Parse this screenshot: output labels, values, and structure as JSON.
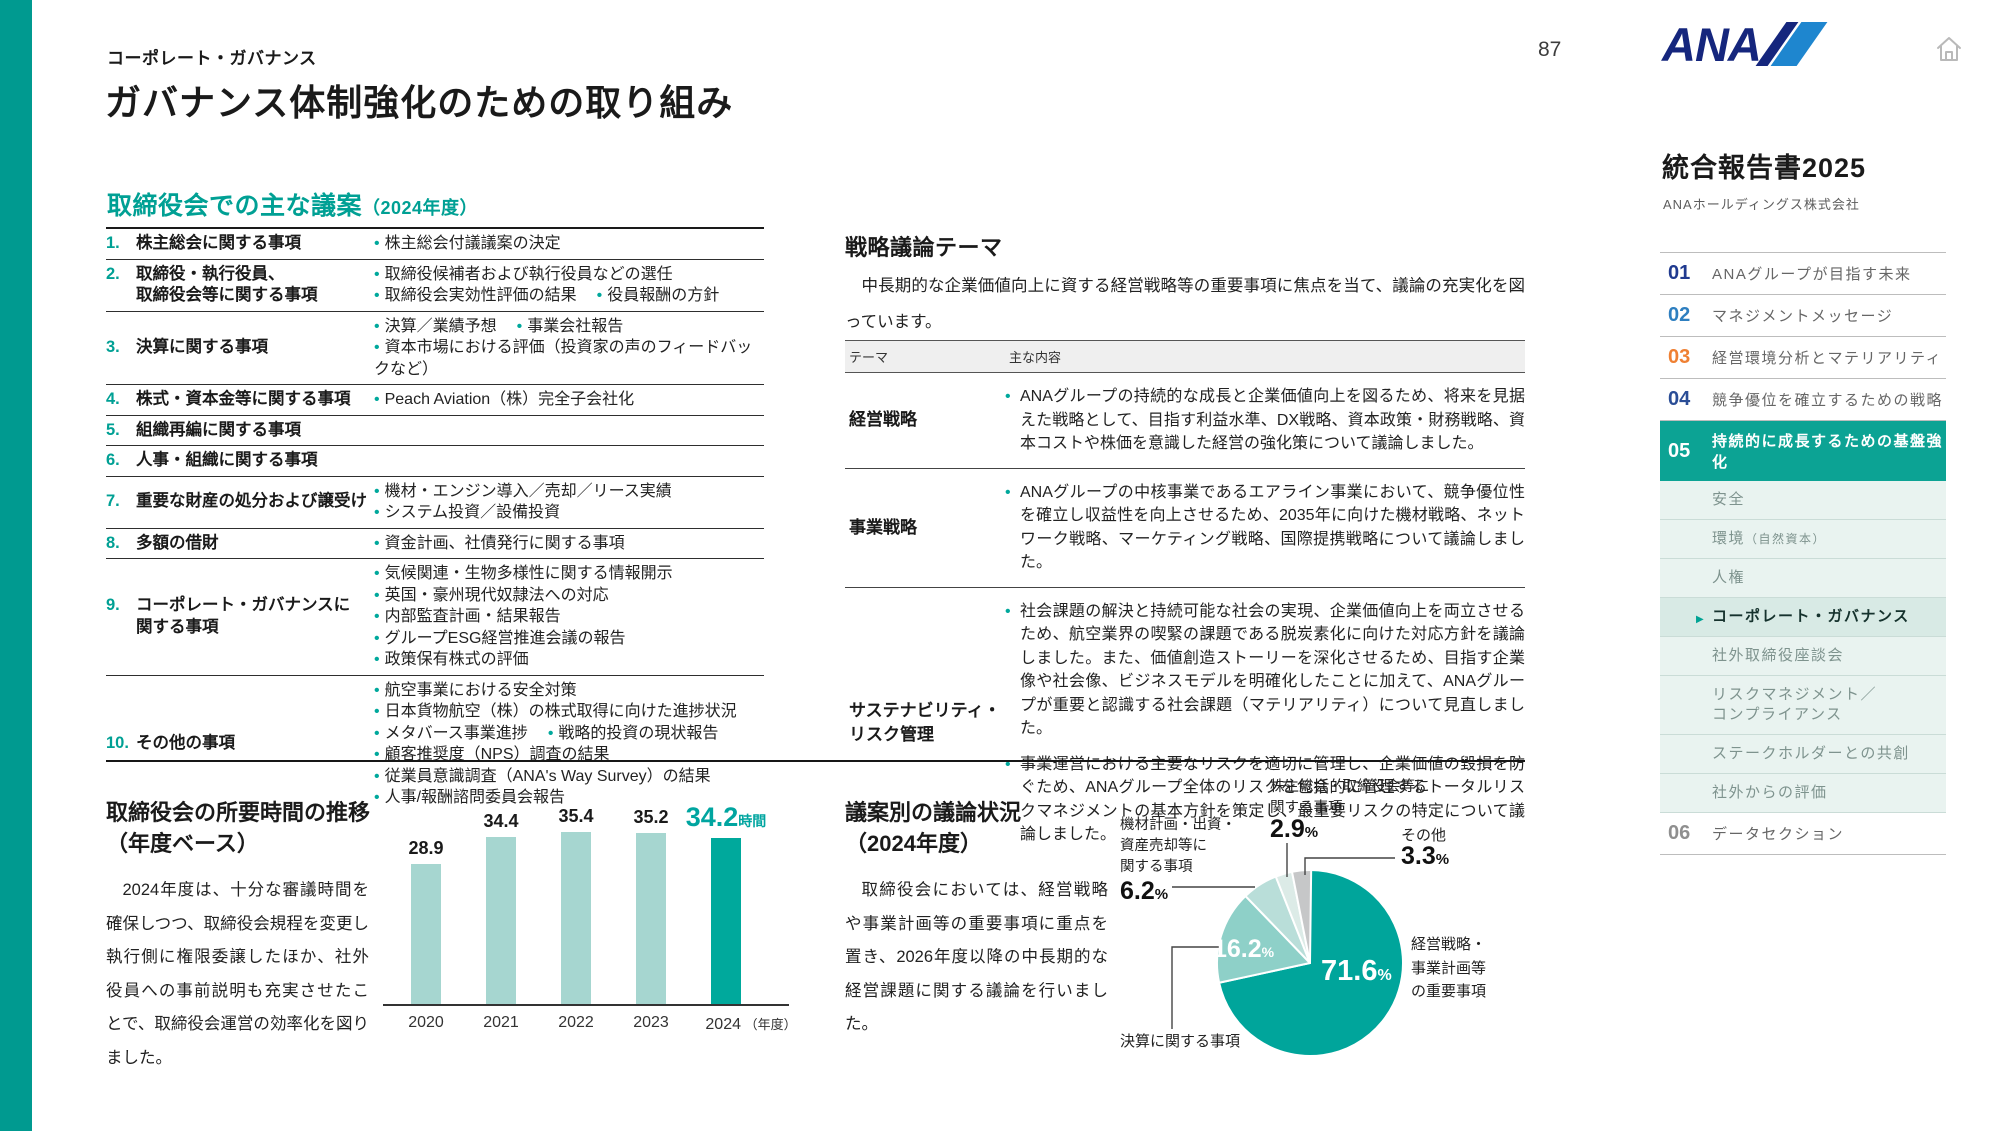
{
  "page": {
    "number": "87",
    "eyebrow": "コーポレート・ガバナンス",
    "title": "ガバナンス体制強化のための取り組み"
  },
  "agenda": {
    "heading": "取締役会での主な議案",
    "heading_note": "（2024年度）",
    "rows": [
      {
        "no": "1.",
        "item_lines": [
          "株主総会に関する事項"
        ],
        "details": [
          [
            "株主総会付議議案の決定"
          ]
        ]
      },
      {
        "no": "2.",
        "item_lines": [
          "取締役・執行役員、",
          "取締役会等に関する事項"
        ],
        "details": [
          [
            "取締役候補者および執行役員などの選任"
          ],
          [
            "取締役会実効性評価の結果",
            "役員報酬の方針"
          ]
        ]
      },
      {
        "no": "3.",
        "item_lines": [
          "決算に関する事項"
        ],
        "details": [
          [
            "決算／業績予想",
            "事業会社報告"
          ],
          [
            "資本市場における評価（投資家の声のフィードバックなど）"
          ]
        ]
      },
      {
        "no": "4.",
        "item_lines": [
          "株式・資本金等に関する事項"
        ],
        "details": [
          [
            "Peach Aviation（株）完全子会社化"
          ]
        ]
      },
      {
        "no": "5.",
        "item_lines": [
          "組織再編に関する事項"
        ],
        "details": []
      },
      {
        "no": "6.",
        "item_lines": [
          "人事・組織に関する事項"
        ],
        "details": []
      },
      {
        "no": "7.",
        "item_lines": [
          "重要な財産の処分および譲受け"
        ],
        "details": [
          [
            "機材・エンジン導入／売却／リース実績"
          ],
          [
            "システム投資／設備投資"
          ]
        ]
      },
      {
        "no": "8.",
        "item_lines": [
          "多額の借財"
        ],
        "details": [
          [
            "資金計画、社債発行に関する事項"
          ]
        ]
      },
      {
        "no": "9.",
        "item_lines": [
          "コーポレート・ガバナンスに",
          "関する事項"
        ],
        "details": [
          [
            "気候関連・生物多様性に関する情報開示"
          ],
          [
            "英国・豪州現代奴隷法への対応"
          ],
          [
            "内部監査計画・結果報告"
          ],
          [
            "グループESG経営推進会議の報告"
          ],
          [
            "政策保有株式の評価"
          ]
        ]
      },
      {
        "no": "10.",
        "item_lines": [
          "その他の事項"
        ],
        "details": [
          [
            "航空事業における安全対策"
          ],
          [
            "日本貨物航空（株）の株式取得に向けた進捗状況"
          ],
          [
            "メタバース事業進捗",
            "戦略的投資の現状報告"
          ],
          [
            "顧客推奨度（NPS）調査の結果"
          ],
          [
            "従業員意識調査（ANA's Way Survey）の結果"
          ],
          [
            "人事/報酬諮問委員会報告"
          ]
        ]
      }
    ]
  },
  "strategy": {
    "heading": "戦略議論テーマ",
    "intro": "中長期的な企業価値向上に資する経営戦略等の重要事項に焦点を当て、議論の充実化を図っています。",
    "col_theme": "テーマ",
    "col_content": "主な内容",
    "rows": [
      {
        "theme_lines": [
          "経営戦略"
        ],
        "bullets": [
          "ANAグループの持続的な成長と企業価値向上を図るため、将来を見据えた戦略として、目指す利益水準、DX戦略、資本政策・財務戦略、資本コストや株価を意識した経営の強化策について議論しました。"
        ]
      },
      {
        "theme_lines": [
          "事業戦略"
        ],
        "bullets": [
          "ANAグループの中核事業であるエアライン事業において、競争優位性を確立し収益性を向上させるため、2035年に向けた機材戦略、ネットワーク戦略、マーケティング戦略、国際提携戦略について議論しました。"
        ]
      },
      {
        "theme_lines": [
          "サステナビリティ・",
          "リスク管理"
        ],
        "bullets": [
          "社会課題の解決と持続可能な社会の実現、企業価値向上を両立させるため、航空業界の喫緊の課題である脱炭素化に向けた対応方針を議論しました。また、価値創造ストーリーを深化させるため、目指す企業像や社会像、ビジネスモデルを明確化したことに加えて、ANAグループが重要と認識する社会課題（マテリアリティ）について見直しました。",
          "事業運営における主要なリスクを適切に管理し、企業価値の毀損を防ぐため、ANAグループ全体のリスクを包括的に管理するトータルリスクマネジメントの基本方針を策定し、最重要リスクの特定について議論しました。"
        ]
      }
    ]
  },
  "hours": {
    "title_lines": [
      "取締役会の所要時間の推移",
      "（年度ベース）"
    ],
    "body": "2024年度は、十分な審議時間を確保しつつ、取締役会規程を変更し執行側に権限委譲したほか、社外役員への事前説明も充実させたことで、取締役会運営の効率化を図りました。"
  },
  "discussion": {
    "title_lines": [
      "議案別の議論状況",
      "（2024年度）"
    ],
    "body": "取締役会においては、経営戦略や事業計画等の重要事項に重点を置き、2026年度以降の中長期的な経営課題に関する議論を行いました。"
  },
  "chart_data": [
    {
      "type": "bar",
      "title": "取締役会の所要時間の推移（年度ベース）",
      "categories": [
        "2020",
        "2021",
        "2022",
        "2023",
        "2024"
      ],
      "values": [
        28.9,
        34.4,
        35.4,
        35.2,
        34.2
      ],
      "unit": "時間",
      "axis_note": "（年度）",
      "highlight_index": 4,
      "ylim": [
        0,
        40
      ],
      "bar_color": "#a6d6d0",
      "highlight_color": "#00a99c"
    },
    {
      "type": "pie",
      "title": "議案別の議論状況（2024年度）",
      "unit": "%",
      "direction": "clockwise",
      "start_angle_deg": 0,
      "slices": [
        {
          "label": "経営戦略・事業計画等の重要事項",
          "label_lines": [
            "経営戦略・",
            "事業計画等",
            "の重要事項"
          ],
          "value": 71.6,
          "color": "#00a59b"
        },
        {
          "label": "決算に関する事項",
          "value": 16.2,
          "color": "#8ed0c8"
        },
        {
          "label": "機材計画・出資・資産売却等に関する事項",
          "label_lines": [
            "機材計画・出資・",
            "資産売却等に",
            "関する事項"
          ],
          "value": 6.2,
          "color": "#b9ded9"
        },
        {
          "label": "株主総会・取締役会等に関する事項",
          "label_lines": [
            "株主総会・取締役会等に",
            "関する事項"
          ],
          "value": 2.9,
          "color": "#dcebe7"
        },
        {
          "label": "その他",
          "value": 3.3,
          "color": "#c6c7c8"
        }
      ]
    }
  ],
  "sidebar": {
    "logo_text": "ANA",
    "report_title": "統合報告書2025",
    "company": "ANAホールディングス株式会社",
    "nav": [
      {
        "num": "01",
        "label": "ANAグループが目指す未来",
        "num_color": "#203a8f"
      },
      {
        "num": "02",
        "label": "マネジメントメッセージ",
        "num_color": "#2e7fc0"
      },
      {
        "num": "03",
        "label": "経営環境分析とマテリアリティ",
        "num_color": "#ef8033"
      },
      {
        "num": "04",
        "label": "競争優位を確立するための戦略",
        "num_color": "#2a4d96"
      },
      {
        "num": "05",
        "label": "持続的に成長するための基盤強化",
        "num_color": "#ffffff",
        "active_section": true,
        "children": [
          {
            "label": "安全"
          },
          {
            "label": "環境",
            "note": "（自然資本）"
          },
          {
            "label": "人権"
          },
          {
            "label": "コーポレート・ガバナンス",
            "active": true
          },
          {
            "label": "社外取締役座談会"
          },
          {
            "lines": [
              "リスクマネジメント／",
              "コンプライアンス"
            ]
          },
          {
            "label": "ステークホルダーとの共創"
          },
          {
            "label": "社外からの評価"
          }
        ]
      },
      {
        "num": "06",
        "label": "データセクション",
        "num_color": "#8f8f8f"
      }
    ]
  }
}
